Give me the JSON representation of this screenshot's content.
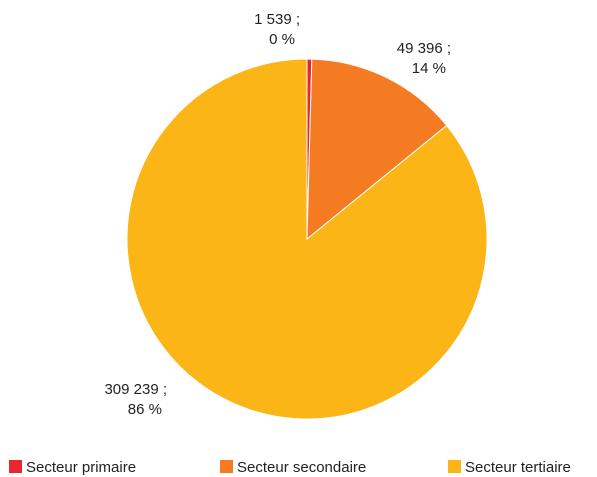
{
  "chart_data": {
    "type": "pie",
    "slices": [
      {
        "category": "Secteur primaire",
        "value": 1539,
        "value_label": "1 539 ;",
        "percent": 0,
        "percent_label": "0 %",
        "color": "#e8262e"
      },
      {
        "category": "Secteur secondaire",
        "value": 49396,
        "value_label": "49 396 ;",
        "percent": 14,
        "percent_label": "14 %",
        "color": "#f47b21"
      },
      {
        "category": "Secteur tertiaire",
        "value": 309239,
        "value_label": "309 239 ;",
        "percent": 86,
        "percent_label": "86 %",
        "color": "#fbb516"
      }
    ],
    "legend": {
      "position": "bottom",
      "items": [
        "Secteur primaire",
        "Secteur secondaire",
        "Secteur tertiaire"
      ]
    }
  }
}
